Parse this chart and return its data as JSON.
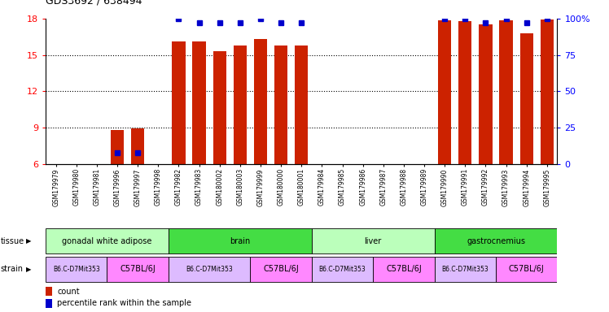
{
  "title": "GDS3692 / 638494",
  "samples": [
    "GSM179979",
    "GSM179980",
    "GSM179981",
    "GSM179996",
    "GSM179997",
    "GSM179998",
    "GSM179982",
    "GSM179983",
    "GSM180002",
    "GSM180003",
    "GSM179999",
    "GSM180000",
    "GSM180001",
    "GSM179984",
    "GSM179985",
    "GSM179986",
    "GSM179987",
    "GSM179988",
    "GSM179989",
    "GSM179990",
    "GSM179991",
    "GSM179992",
    "GSM179993",
    "GSM179994",
    "GSM179995"
  ],
  "count_values": [
    6,
    6,
    6,
    8.8,
    8.9,
    6,
    16.1,
    16.1,
    15.3,
    15.8,
    16.3,
    15.8,
    15.8,
    6,
    6,
    6,
    6,
    6,
    6,
    17.9,
    17.8,
    17.5,
    17.9,
    16.8,
    17.95
  ],
  "percentile_values": [
    null,
    null,
    null,
    7.5,
    7.5,
    null,
    100,
    97,
    97,
    97,
    100,
    97,
    97,
    null,
    null,
    null,
    null,
    null,
    null,
    100,
    100,
    97,
    100,
    97,
    100
  ],
  "ymin": 6,
  "ymax": 18,
  "yticks": [
    6,
    9,
    12,
    15,
    18
  ],
  "yticks_right_vals": [
    0,
    25,
    50,
    75,
    100
  ],
  "yticks_right_labels": [
    "0",
    "25",
    "50",
    "75",
    "100%"
  ],
  "tissue_groups": [
    {
      "label": "gonadal white adipose",
      "start": 0,
      "end": 5,
      "color": "#bbffbb"
    },
    {
      "label": "brain",
      "start": 6,
      "end": 12,
      "color": "#44dd44"
    },
    {
      "label": "liver",
      "start": 13,
      "end": 18,
      "color": "#bbffbb"
    },
    {
      "label": "gastrocnemius",
      "start": 19,
      "end": 24,
      "color": "#44dd44"
    }
  ],
  "strain_groups": [
    {
      "label": "B6.C-D7Mit353",
      "start": 0,
      "end": 2,
      "color": "#ddbbff"
    },
    {
      "label": "C57BL/6J",
      "start": 3,
      "end": 5,
      "color": "#ff88ff"
    },
    {
      "label": "B6.C-D7Mit353",
      "start": 6,
      "end": 9,
      "color": "#ddbbff"
    },
    {
      "label": "C57BL/6J",
      "start": 10,
      "end": 12,
      "color": "#ff88ff"
    },
    {
      "label": "B6.C-D7Mit353",
      "start": 13,
      "end": 15,
      "color": "#ddbbff"
    },
    {
      "label": "C57BL/6J",
      "start": 16,
      "end": 18,
      "color": "#ff88ff"
    },
    {
      "label": "B6.C-D7Mit353",
      "start": 19,
      "end": 21,
      "color": "#ddbbff"
    },
    {
      "label": "C57BL/6J",
      "start": 22,
      "end": 24,
      "color": "#ff88ff"
    }
  ],
  "bar_color": "#cc2200",
  "percentile_color": "#0000cc",
  "bar_width": 0.65,
  "percentile_marker_size": 4,
  "background_color": "#ffffff"
}
